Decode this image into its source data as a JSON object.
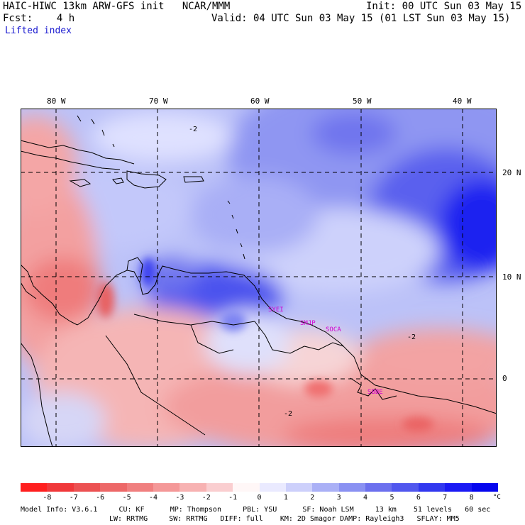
{
  "header": {
    "model_line": "HAIC-HIWC 13km ARW-GFS init   NCAR/MMM",
    "init_line": "Init: 00 UTC Sun 03 May 15",
    "fcst_line": "Fcst:    4 h",
    "valid_line": "Valid: 04 UTC Sun 03 May 15 (01 LST Sun 03 May 15)",
    "field_name": "Lifted index"
  },
  "map": {
    "lon_labels": [
      "80 W",
      "70 W",
      "60 W",
      "50 W",
      "40 W"
    ],
    "lat_labels": [
      "20 N",
      "10 N",
      "0"
    ],
    "contour_labels": [
      "-2",
      "-2",
      "-2"
    ],
    "stations": [
      "SYEI",
      "SMJP",
      "SOCA",
      "SBBE"
    ]
  },
  "colorbar": {
    "labels": [
      "-8",
      "-7",
      "-6",
      "-5",
      "-4",
      "-3",
      "-2",
      "-1",
      "0",
      "1",
      "2",
      "3",
      "4",
      "5",
      "6",
      "7",
      "8"
    ],
    "unit": "°C",
    "colors": [
      "#ff1f1f",
      "#f0383a",
      "#ec5152",
      "#ed6868",
      "#f07f7f",
      "#f49898",
      "#f7b2b2",
      "#faced0",
      "#fff7f7",
      "#eaeaff",
      "#cdd0fb",
      "#aab0f6",
      "#8a91f2",
      "#6c70ee",
      "#5157ee",
      "#3238ef",
      "#1b1af4",
      "#0606ee"
    ]
  },
  "model_info": {
    "line1": "Model Info: V3.6.1     CU: KF      MP: Thompson     PBL: YSU      SF: Noah LSM     13 km    51 levels   60 sec",
    "line2": "LW: RRTMG     SW: RRTMG   DIFF: full    KM: 2D Smagor DAMP: Rayleigh3   SFLAY: MM5"
  }
}
